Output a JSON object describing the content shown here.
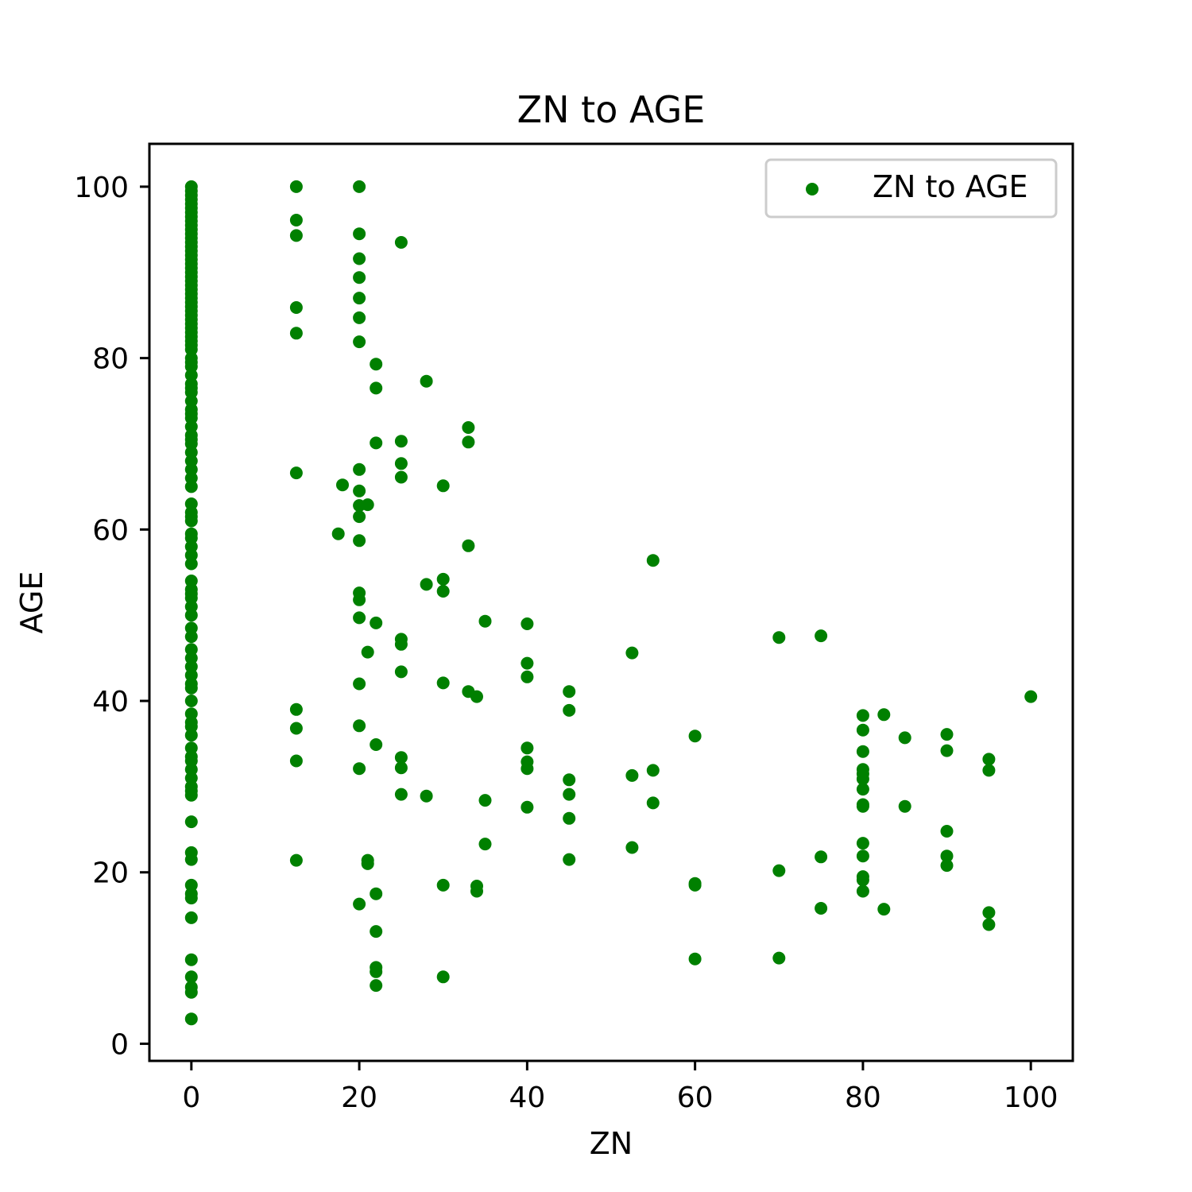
{
  "chart_data": {
    "type": "scatter",
    "title": "ZN to AGE",
    "xlabel": "ZN",
    "ylabel": "AGE",
    "xlim": [
      -5,
      105
    ],
    "ylim": [
      -2,
      105
    ],
    "xticks": [
      0,
      20,
      40,
      60,
      80,
      100
    ],
    "yticks": [
      0,
      20,
      40,
      60,
      80,
      100
    ],
    "grid": false,
    "legend_position": "top-right",
    "marker_color": "#008000",
    "series": [
      {
        "name": "ZN to AGE",
        "points": [
          {
            "x": 0,
            "y": 100
          },
          {
            "x": 0,
            "y": 99.5
          },
          {
            "x": 0,
            "y": 99
          },
          {
            "x": 0,
            "y": 98.5
          },
          {
            "x": 0,
            "y": 98
          },
          {
            "x": 0,
            "y": 97.5
          },
          {
            "x": 0,
            "y": 97
          },
          {
            "x": 0,
            "y": 96.5
          },
          {
            "x": 0,
            "y": 96
          },
          {
            "x": 0,
            "y": 95.5
          },
          {
            "x": 0,
            "y": 95
          },
          {
            "x": 0,
            "y": 94.5
          },
          {
            "x": 0,
            "y": 94
          },
          {
            "x": 0,
            "y": 93.5
          },
          {
            "x": 0,
            "y": 93
          },
          {
            "x": 0,
            "y": 92.5
          },
          {
            "x": 0,
            "y": 92
          },
          {
            "x": 0,
            "y": 91.5
          },
          {
            "x": 0,
            "y": 91
          },
          {
            "x": 0,
            "y": 90.5
          },
          {
            "x": 0,
            "y": 90
          },
          {
            "x": 0,
            "y": 89.5
          },
          {
            "x": 0,
            "y": 89
          },
          {
            "x": 0,
            "y": 88.5
          },
          {
            "x": 0,
            "y": 88
          },
          {
            "x": 0,
            "y": 87.5
          },
          {
            "x": 0,
            "y": 87
          },
          {
            "x": 0,
            "y": 86.5
          },
          {
            "x": 0,
            "y": 86
          },
          {
            "x": 0,
            "y": 85.5
          },
          {
            "x": 0,
            "y": 85
          },
          {
            "x": 0,
            "y": 84.5
          },
          {
            "x": 0,
            "y": 84
          },
          {
            "x": 0,
            "y": 83.5
          },
          {
            "x": 0,
            "y": 83
          },
          {
            "x": 0,
            "y": 82.5
          },
          {
            "x": 0,
            "y": 82
          },
          {
            "x": 0,
            "y": 81.5
          },
          {
            "x": 0,
            "y": 81
          },
          {
            "x": 0,
            "y": 80
          },
          {
            "x": 0,
            "y": 79.5
          },
          {
            "x": 0,
            "y": 79
          },
          {
            "x": 0,
            "y": 78
          },
          {
            "x": 0,
            "y": 77
          },
          {
            "x": 0,
            "y": 76.5
          },
          {
            "x": 0,
            "y": 76
          },
          {
            "x": 0,
            "y": 75
          },
          {
            "x": 0,
            "y": 74
          },
          {
            "x": 0,
            "y": 73.5
          },
          {
            "x": 0,
            "y": 73
          },
          {
            "x": 0,
            "y": 72
          },
          {
            "x": 0,
            "y": 71
          },
          {
            "x": 0,
            "y": 70.5
          },
          {
            "x": 0,
            "y": 70
          },
          {
            "x": 0,
            "y": 69
          },
          {
            "x": 0,
            "y": 68
          },
          {
            "x": 0,
            "y": 67
          },
          {
            "x": 0,
            "y": 66
          },
          {
            "x": 0,
            "y": 65
          },
          {
            "x": 0,
            "y": 63
          },
          {
            "x": 0,
            "y": 62
          },
          {
            "x": 0,
            "y": 61.5
          },
          {
            "x": 0,
            "y": 61
          },
          {
            "x": 0,
            "y": 59.5
          },
          {
            "x": 0,
            "y": 59
          },
          {
            "x": 0,
            "y": 58
          },
          {
            "x": 0,
            "y": 57
          },
          {
            "x": 0,
            "y": 56
          },
          {
            "x": 0,
            "y": 54
          },
          {
            "x": 0,
            "y": 53
          },
          {
            "x": 0,
            "y": 52.5
          },
          {
            "x": 0,
            "y": 52
          },
          {
            "x": 0,
            "y": 51
          },
          {
            "x": 0,
            "y": 50
          },
          {
            "x": 0,
            "y": 48.5
          },
          {
            "x": 0,
            "y": 47.5
          },
          {
            "x": 0,
            "y": 46
          },
          {
            "x": 0,
            "y": 45
          },
          {
            "x": 0,
            "y": 44
          },
          {
            "x": 0,
            "y": 43
          },
          {
            "x": 0,
            "y": 42
          },
          {
            "x": 0,
            "y": 41.5
          },
          {
            "x": 0,
            "y": 40
          },
          {
            "x": 0,
            "y": 38.5
          },
          {
            "x": 0,
            "y": 37.5
          },
          {
            "x": 0,
            "y": 37
          },
          {
            "x": 0,
            "y": 36
          },
          {
            "x": 0,
            "y": 34.5
          },
          {
            "x": 0,
            "y": 33.5
          },
          {
            "x": 0,
            "y": 33
          },
          {
            "x": 0,
            "y": 32
          },
          {
            "x": 0,
            "y": 31
          },
          {
            "x": 0,
            "y": 30
          },
          {
            "x": 0,
            "y": 29.5
          },
          {
            "x": 0,
            "y": 29
          },
          {
            "x": 0,
            "y": 25.9
          },
          {
            "x": 0,
            "y": 22.3
          },
          {
            "x": 0,
            "y": 21.5
          },
          {
            "x": 0,
            "y": 18.5
          },
          {
            "x": 0,
            "y": 17.5
          },
          {
            "x": 0,
            "y": 17
          },
          {
            "x": 0,
            "y": 14.7
          },
          {
            "x": 0,
            "y": 9.8
          },
          {
            "x": 0,
            "y": 7.8
          },
          {
            "x": 0,
            "y": 6.6
          },
          {
            "x": 0,
            "y": 6
          },
          {
            "x": 0,
            "y": 2.9
          },
          {
            "x": 12.5,
            "y": 100
          },
          {
            "x": 12.5,
            "y": 96.1
          },
          {
            "x": 12.5,
            "y": 94.3
          },
          {
            "x": 12.5,
            "y": 85.9
          },
          {
            "x": 12.5,
            "y": 82.9
          },
          {
            "x": 12.5,
            "y": 66.6
          },
          {
            "x": 12.5,
            "y": 39
          },
          {
            "x": 12.5,
            "y": 36.8
          },
          {
            "x": 12.5,
            "y": 33
          },
          {
            "x": 12.5,
            "y": 21.4
          },
          {
            "x": 17.5,
            "y": 59.5
          },
          {
            "x": 18,
            "y": 65.2
          },
          {
            "x": 20,
            "y": 100
          },
          {
            "x": 20,
            "y": 94.5
          },
          {
            "x": 20,
            "y": 91.6
          },
          {
            "x": 20,
            "y": 89.4
          },
          {
            "x": 20,
            "y": 87
          },
          {
            "x": 20,
            "y": 84.7
          },
          {
            "x": 20,
            "y": 81.9
          },
          {
            "x": 20,
            "y": 67
          },
          {
            "x": 20,
            "y": 64.5
          },
          {
            "x": 20,
            "y": 62.8
          },
          {
            "x": 20,
            "y": 61.5
          },
          {
            "x": 20,
            "y": 58.7
          },
          {
            "x": 20,
            "y": 52.6
          },
          {
            "x": 20,
            "y": 51.8
          },
          {
            "x": 20,
            "y": 49.7
          },
          {
            "x": 20,
            "y": 42
          },
          {
            "x": 20,
            "y": 37.1
          },
          {
            "x": 20,
            "y": 32.1
          },
          {
            "x": 20,
            "y": 16.3
          },
          {
            "x": 21,
            "y": 62.9
          },
          {
            "x": 21,
            "y": 45.7
          },
          {
            "x": 21,
            "y": 21.4
          },
          {
            "x": 21,
            "y": 21
          },
          {
            "x": 22,
            "y": 79.3
          },
          {
            "x": 22,
            "y": 76.5
          },
          {
            "x": 22,
            "y": 70.1
          },
          {
            "x": 22,
            "y": 49.1
          },
          {
            "x": 22,
            "y": 34.9
          },
          {
            "x": 22,
            "y": 17.5
          },
          {
            "x": 22,
            "y": 13.1
          },
          {
            "x": 22,
            "y": 8.9
          },
          {
            "x": 22,
            "y": 8.4
          },
          {
            "x": 22,
            "y": 6.8
          },
          {
            "x": 25,
            "y": 93.5
          },
          {
            "x": 25,
            "y": 70.3
          },
          {
            "x": 25,
            "y": 67.7
          },
          {
            "x": 25,
            "y": 66.1
          },
          {
            "x": 25,
            "y": 47.2
          },
          {
            "x": 25,
            "y": 46.6
          },
          {
            "x": 25,
            "y": 43.4
          },
          {
            "x": 25,
            "y": 33.4
          },
          {
            "x": 25,
            "y": 32.2
          },
          {
            "x": 25,
            "y": 29.1
          },
          {
            "x": 28,
            "y": 77.3
          },
          {
            "x": 28,
            "y": 53.6
          },
          {
            "x": 28,
            "y": 28.9
          },
          {
            "x": 30,
            "y": 65.1
          },
          {
            "x": 30,
            "y": 54.2
          },
          {
            "x": 30,
            "y": 52.8
          },
          {
            "x": 30,
            "y": 42.1
          },
          {
            "x": 30,
            "y": 18.5
          },
          {
            "x": 30,
            "y": 7.8
          },
          {
            "x": 33,
            "y": 71.9
          },
          {
            "x": 33,
            "y": 70.2
          },
          {
            "x": 33,
            "y": 58.1
          },
          {
            "x": 33,
            "y": 41.1
          },
          {
            "x": 34,
            "y": 40.5
          },
          {
            "x": 34,
            "y": 18.4
          },
          {
            "x": 34,
            "y": 17.8
          },
          {
            "x": 35,
            "y": 49.3
          },
          {
            "x": 35,
            "y": 28.4
          },
          {
            "x": 35,
            "y": 23.3
          },
          {
            "x": 40,
            "y": 49
          },
          {
            "x": 40,
            "y": 44.4
          },
          {
            "x": 40,
            "y": 42.8
          },
          {
            "x": 40,
            "y": 34.5
          },
          {
            "x": 40,
            "y": 32.9
          },
          {
            "x": 40,
            "y": 32.1
          },
          {
            "x": 40,
            "y": 27.6
          },
          {
            "x": 45,
            "y": 41.1
          },
          {
            "x": 45,
            "y": 38.9
          },
          {
            "x": 45,
            "y": 30.8
          },
          {
            "x": 45,
            "y": 29.1
          },
          {
            "x": 45,
            "y": 26.3
          },
          {
            "x": 45,
            "y": 21.5
          },
          {
            "x": 52.5,
            "y": 45.6
          },
          {
            "x": 52.5,
            "y": 31.3
          },
          {
            "x": 52.5,
            "y": 22.9
          },
          {
            "x": 55,
            "y": 56.4
          },
          {
            "x": 55,
            "y": 31.9
          },
          {
            "x": 55,
            "y": 28.1
          },
          {
            "x": 60,
            "y": 35.9
          },
          {
            "x": 60,
            "y": 18.7
          },
          {
            "x": 60,
            "y": 18.5
          },
          {
            "x": 60,
            "y": 9.9
          },
          {
            "x": 70,
            "y": 47.4
          },
          {
            "x": 70,
            "y": 20.2
          },
          {
            "x": 70,
            "y": 10
          },
          {
            "x": 75,
            "y": 47.6
          },
          {
            "x": 75,
            "y": 21.8
          },
          {
            "x": 75,
            "y": 15.8
          },
          {
            "x": 80,
            "y": 38.3
          },
          {
            "x": 80,
            "y": 36.6
          },
          {
            "x": 80,
            "y": 34.1
          },
          {
            "x": 80,
            "y": 32
          },
          {
            "x": 80,
            "y": 31.5
          },
          {
            "x": 80,
            "y": 30.9
          },
          {
            "x": 80,
            "y": 29.7
          },
          {
            "x": 80,
            "y": 27.9
          },
          {
            "x": 80,
            "y": 27.7
          },
          {
            "x": 80,
            "y": 23.4
          },
          {
            "x": 80,
            "y": 21.9
          },
          {
            "x": 80,
            "y": 19.5
          },
          {
            "x": 80,
            "y": 19.1
          },
          {
            "x": 80,
            "y": 17.8
          },
          {
            "x": 82.5,
            "y": 38.4
          },
          {
            "x": 82.5,
            "y": 15.7
          },
          {
            "x": 85,
            "y": 35.7
          },
          {
            "x": 85,
            "y": 27.7
          },
          {
            "x": 90,
            "y": 36.1
          },
          {
            "x": 90,
            "y": 34.2
          },
          {
            "x": 90,
            "y": 24.8
          },
          {
            "x": 90,
            "y": 21.9
          },
          {
            "x": 90,
            "y": 20.8
          },
          {
            "x": 95,
            "y": 33.2
          },
          {
            "x": 95,
            "y": 31.9
          },
          {
            "x": 95,
            "y": 15.3
          },
          {
            "x": 95,
            "y": 13.9
          },
          {
            "x": 100,
            "y": 40.5
          }
        ]
      }
    ]
  }
}
